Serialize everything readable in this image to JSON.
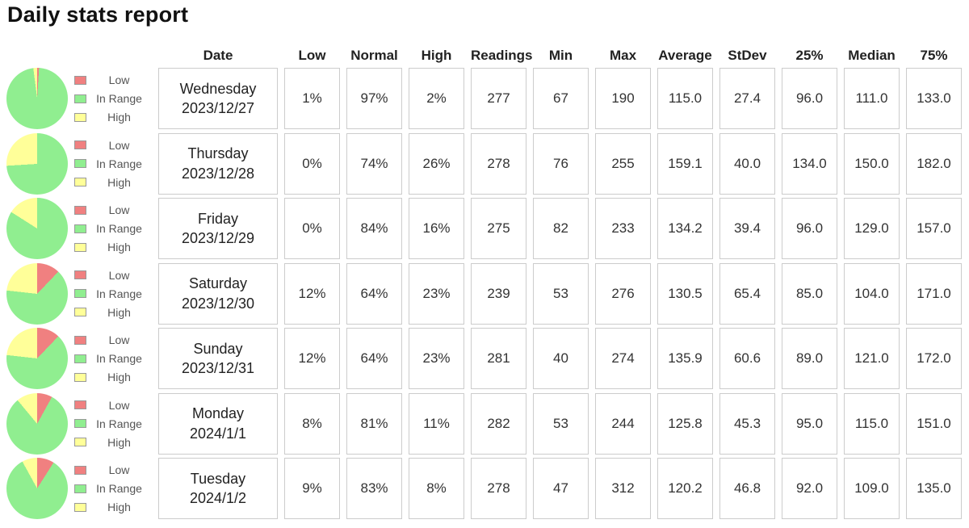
{
  "title": "Daily stats report",
  "colors": {
    "low": "#f08080",
    "in_range": "#90ee90",
    "high": "#ffff99",
    "cell_border": "#cccccc",
    "legend_text": "#555555"
  },
  "legend_labels": [
    "Low",
    "In Range",
    "High"
  ],
  "table": {
    "columns": [
      "Date",
      "Low",
      "Normal",
      "High",
      "Readings",
      "Min",
      "Max",
      "Average",
      "StDev",
      "25%",
      "Median",
      "75%"
    ],
    "rows": [
      {
        "day": "Wednesday",
        "date": "2023/12/27",
        "values": [
          "1%",
          "97%",
          "2%",
          "277",
          "67",
          "190",
          "115.0",
          "27.4",
          "96.0",
          "111.0",
          "133.0"
        ],
        "pie": [
          1,
          97,
          2
        ]
      },
      {
        "day": "Thursday",
        "date": "2023/12/28",
        "values": [
          "0%",
          "74%",
          "26%",
          "278",
          "76",
          "255",
          "159.1",
          "40.0",
          "134.0",
          "150.0",
          "182.0"
        ],
        "pie": [
          0,
          74,
          26
        ]
      },
      {
        "day": "Friday",
        "date": "2023/12/29",
        "values": [
          "0%",
          "84%",
          "16%",
          "275",
          "82",
          "233",
          "134.2",
          "39.4",
          "96.0",
          "129.0",
          "157.0"
        ],
        "pie": [
          0,
          84,
          16
        ]
      },
      {
        "day": "Saturday",
        "date": "2023/12/30",
        "values": [
          "12%",
          "64%",
          "23%",
          "239",
          "53",
          "276",
          "130.5",
          "65.4",
          "85.0",
          "104.0",
          "171.0"
        ],
        "pie": [
          12,
          64,
          23
        ]
      },
      {
        "day": "Sunday",
        "date": "2023/12/31",
        "values": [
          "12%",
          "64%",
          "23%",
          "281",
          "40",
          "274",
          "135.9",
          "60.6",
          "89.0",
          "121.0",
          "172.0"
        ],
        "pie": [
          12,
          64,
          23
        ]
      },
      {
        "day": "Monday",
        "date": "2024/1/1",
        "values": [
          "8%",
          "81%",
          "11%",
          "282",
          "53",
          "244",
          "125.8",
          "45.3",
          "95.0",
          "115.0",
          "151.0"
        ],
        "pie": [
          8,
          81,
          11
        ]
      },
      {
        "day": "Tuesday",
        "date": "2024/1/2",
        "values": [
          "9%",
          "83%",
          "8%",
          "278",
          "47",
          "312",
          "120.2",
          "46.8",
          "92.0",
          "109.0",
          "135.0"
        ],
        "pie": [
          9,
          83,
          8
        ]
      }
    ]
  },
  "chart_data": [
    {
      "type": "pie",
      "title": "Daily distribution of readings (one pie per day)",
      "categories": [
        "Low",
        "In Range",
        "High"
      ],
      "colors": [
        "#f08080",
        "#90ee90",
        "#ffff99"
      ],
      "legend_position": "right of each pie",
      "series": [
        {
          "name": "Wednesday 2023/12/27",
          "values": [
            1,
            97,
            2
          ]
        },
        {
          "name": "Thursday 2023/12/28",
          "values": [
            0,
            74,
            26
          ]
        },
        {
          "name": "Friday 2023/12/29",
          "values": [
            0,
            84,
            16
          ]
        },
        {
          "name": "Saturday 2023/12/30",
          "values": [
            12,
            64,
            23
          ]
        },
        {
          "name": "Sunday 2023/12/31",
          "values": [
            12,
            64,
            23
          ]
        },
        {
          "name": "Monday 2024/1/1",
          "values": [
            8,
            81,
            11
          ]
        },
        {
          "name": "Tuesday 2024/1/2",
          "values": [
            9,
            83,
            8
          ]
        }
      ]
    },
    {
      "type": "table",
      "title": "Daily stats report",
      "columns": [
        "Date",
        "Low",
        "Normal",
        "High",
        "Readings",
        "Min",
        "Max",
        "Average",
        "StDev",
        "25%",
        "Median",
        "75%"
      ],
      "rows": [
        [
          "Wednesday 2023/12/27",
          "1%",
          "97%",
          "2%",
          277,
          67,
          190,
          115.0,
          27.4,
          96.0,
          111.0,
          133.0
        ],
        [
          "Thursday 2023/12/28",
          "0%",
          "74%",
          "26%",
          278,
          76,
          255,
          159.1,
          40.0,
          134.0,
          150.0,
          182.0
        ],
        [
          "Friday 2023/12/29",
          "0%",
          "84%",
          "16%",
          275,
          82,
          233,
          134.2,
          39.4,
          96.0,
          129.0,
          157.0
        ],
        [
          "Saturday 2023/12/30",
          "12%",
          "64%",
          "23%",
          239,
          53,
          276,
          130.5,
          65.4,
          85.0,
          104.0,
          171.0
        ],
        [
          "Sunday 2023/12/31",
          "12%",
          "64%",
          "23%",
          281,
          40,
          274,
          135.9,
          60.6,
          89.0,
          121.0,
          172.0
        ],
        [
          "Monday 2024/1/1",
          "8%",
          "81%",
          "11%",
          282,
          53,
          244,
          125.8,
          45.3,
          95.0,
          115.0,
          151.0
        ],
        [
          "Tuesday 2024/1/2",
          "9%",
          "83%",
          "8%",
          278,
          47,
          312,
          120.2,
          46.8,
          92.0,
          109.0,
          135.0
        ]
      ]
    }
  ]
}
